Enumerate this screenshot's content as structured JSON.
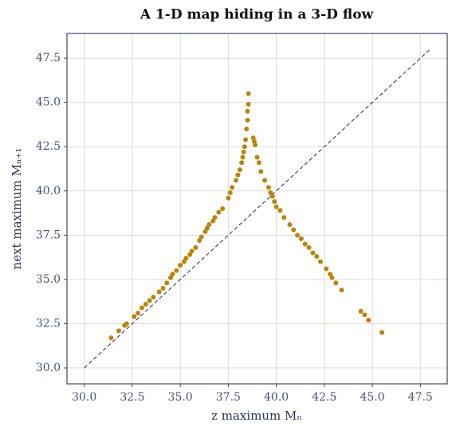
{
  "chart_data": {
    "type": "scatter",
    "title": "A 1-D map hiding in a 3-D flow",
    "x_label": "z maximum Mₙ",
    "y_label": "next maximum Mₙ₊₁",
    "color": "#b8860b",
    "x": [
      31.4,
      31.8,
      32.1,
      32.2,
      32.6,
      32.8,
      33.0,
      33.2,
      33.4,
      33.6,
      33.9,
      34.1,
      34.3,
      34.5,
      34.6,
      34.8,
      35.0,
      35.2,
      35.3,
      35.5,
      35.6,
      35.8,
      36.0,
      36.1,
      36.3,
      36.4,
      36.5,
      36.7,
      36.8,
      37.0,
      37.2,
      37.5,
      37.6,
      37.7,
      37.9,
      38.0,
      38.1,
      38.2,
      38.25,
      38.3,
      38.35,
      38.4,
      38.45,
      38.5,
      38.5,
      38.55,
      38.55,
      38.8,
      38.85,
      38.9,
      39.0,
      39.1,
      39.2,
      39.4,
      39.6,
      39.7,
      39.8,
      39.9,
      40.0,
      40.2,
      40.4,
      40.7,
      40.9,
      41.1,
      41.3,
      41.5,
      41.7,
      41.9,
      42.1,
      42.3,
      42.6,
      42.8,
      42.9,
      43.1,
      43.4,
      44.4,
      44.6,
      44.8,
      45.5
    ],
    "values": [
      31.7,
      32.1,
      32.4,
      32.5,
      32.9,
      33.1,
      33.4,
      33.6,
      33.8,
      34.0,
      34.3,
      34.5,
      34.8,
      35.1,
      35.3,
      35.5,
      35.8,
      36.0,
      36.2,
      36.4,
      36.6,
      36.8,
      37.2,
      37.4,
      37.7,
      37.9,
      38.1,
      38.3,
      38.5,
      38.8,
      39.0,
      39.6,
      39.9,
      40.2,
      40.6,
      40.9,
      41.2,
      41.6,
      41.9,
      42.2,
      42.5,
      42.9,
      43.5,
      44.0,
      44.5,
      44.9,
      45.5,
      43.0,
      42.8,
      42.6,
      41.9,
      41.6,
      41.1,
      40.6,
      40.2,
      39.9,
      39.7,
      39.4,
      39.1,
      38.9,
      38.5,
      38.1,
      37.8,
      37.5,
      37.3,
      37.0,
      36.8,
      36.5,
      36.3,
      36.0,
      35.6,
      35.3,
      35.1,
      34.8,
      34.4,
      33.2,
      33.0,
      32.7,
      32.0
    ],
    "reference_line": {
      "x": [
        30,
        48
      ],
      "y": [
        30,
        48
      ],
      "color": "#4a4a6a",
      "dashed": true
    },
    "xlim": [
      29.1,
      48.9
    ],
    "ylim": [
      29.1,
      48.9
    ],
    "xticks": [
      {
        "value": 30,
        "label": "30.0"
      },
      32.5,
      {
        "value": 35,
        "label": "35.0"
      },
      37.5,
      {
        "value": 40,
        "label": "40.0"
      },
      42.5,
      {
        "value": 45,
        "label": "45.0"
      },
      47.5
    ],
    "yticks": [
      {
        "value": 30,
        "label": "30.0"
      },
      32.5,
      {
        "value": 35,
        "label": "35.0"
      },
      37.5,
      {
        "value": 40,
        "label": "40.0"
      },
      42.5,
      {
        "value": 45,
        "label": "45.0"
      },
      47.5
    ],
    "grid": true
  }
}
